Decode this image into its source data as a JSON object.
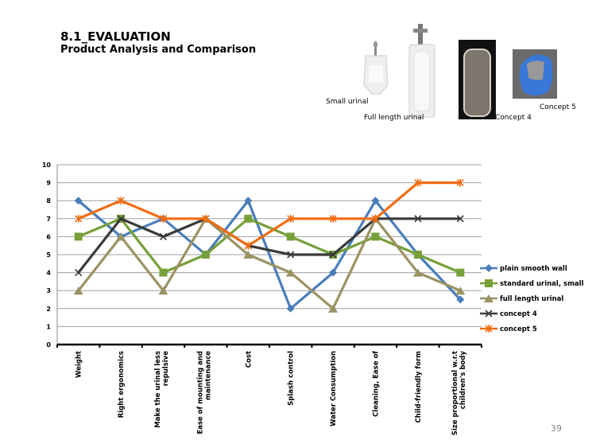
{
  "header": {
    "title": "8.1_EVALUATION",
    "subtitle": "Product Analysis and Comparison"
  },
  "images": {
    "small_urinal": "Small urinal",
    "full_length_urinal": "Full length urinal",
    "concept4": "Concept 4",
    "concept5": "Concept 5"
  },
  "page_number": "39",
  "chart_data": {
    "type": "line",
    "title": "",
    "xlabel": "",
    "ylabel": "",
    "ylim": [
      0,
      10
    ],
    "yticks": [
      "0",
      "1",
      "2",
      "3",
      "4",
      "5",
      "6",
      "7",
      "8",
      "9",
      "10"
    ],
    "grid": true,
    "legend_position": "right",
    "categories": [
      [
        "Weight"
      ],
      [
        "Right ergonomics"
      ],
      [
        "Make the urinal less",
        "repulsive"
      ],
      [
        "Ease of mounting and",
        "maintenance"
      ],
      [
        "Cost"
      ],
      [
        "Splash control"
      ],
      [
        "Water Consumption"
      ],
      [
        "Cleaning, Ease of"
      ],
      [
        "Child-friendly form"
      ],
      [
        "Size proportional w.r.t",
        "children's body"
      ]
    ],
    "series": [
      {
        "name": "plain smooth wall",
        "color": "#4a7ebb",
        "marker": "diamond",
        "values": [
          8,
          6,
          7,
          5,
          8,
          2,
          4,
          8,
          5,
          2.5
        ]
      },
      {
        "name": "standard urinal, small",
        "color": "#77a03a",
        "marker": "square",
        "values": [
          6,
          7,
          4,
          5,
          7,
          6,
          5,
          6,
          5,
          4
        ]
      },
      {
        "name": "full length urinal",
        "color": "#9c9363",
        "marker": "triangle",
        "values": [
          3,
          6,
          3,
          7,
          5,
          4,
          2,
          7,
          4,
          3
        ]
      },
      {
        "name": "concept 4",
        "color": "#3a3a3a",
        "marker": "x",
        "values": [
          4,
          7,
          6,
          7,
          5.5,
          5,
          5,
          7,
          7,
          7
        ]
      },
      {
        "name": "concept 5",
        "color": "#f06d12",
        "marker": "star",
        "values": [
          7,
          8,
          7,
          7,
          5.5,
          7,
          7,
          7,
          9,
          9
        ]
      }
    ]
  }
}
